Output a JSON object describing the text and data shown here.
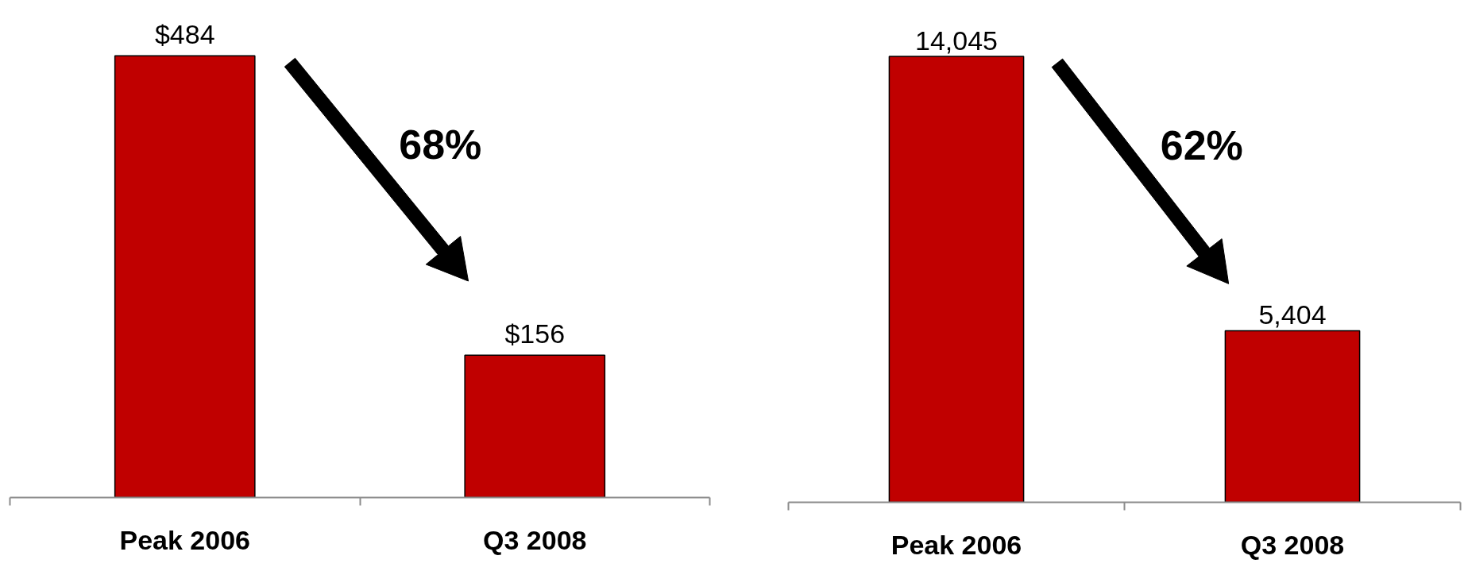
{
  "chart_data": [
    {
      "type": "bar",
      "categories": [
        "Peak 2006",
        "Q3 2008"
      ],
      "values": [
        484,
        156
      ],
      "value_labels": [
        "$484",
        "$156"
      ],
      "color": "#c00000",
      "annotations": [
        "68%"
      ]
    },
    {
      "type": "bar",
      "categories": [
        "Peak 2006",
        "Q3 2008"
      ],
      "values": [
        14045,
        5404
      ],
      "value_labels": [
        "14,045",
        "5,404"
      ],
      "color": "#c00000",
      "annotations": [
        "62%"
      ]
    }
  ]
}
